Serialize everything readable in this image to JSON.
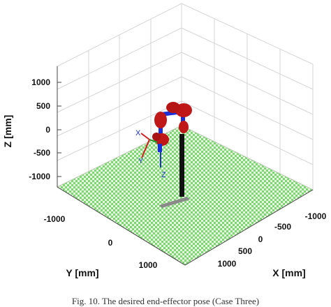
{
  "figure": {
    "caption": "Fig. 10. The desired end-effector pose (Case Three)",
    "axes": {
      "x_label": "X [mm]",
      "y_label": "Y [mm]",
      "z_label": "Z [mm]",
      "x_ticks": [
        "-1000",
        "-500",
        "0",
        "500",
        "1000"
      ],
      "y_ticks": [
        "-1000",
        "0",
        "1000"
      ],
      "z_ticks": [
        "1000",
        "500",
        "0",
        "-500",
        "-1000"
      ]
    },
    "frame_labels": [
      "X",
      "Y",
      "Z"
    ],
    "colors": {
      "floor_green": "#79d86e",
      "floor_light": "#e8f8e2",
      "robot_red": "#c01818",
      "robot_blue": "#1a2fd6",
      "column": "#111111",
      "base_plate": "#8a8a8a",
      "grid": "#d6d6d6",
      "frame_x": "#d41f1f",
      "frame_y": "#1f9a2a",
      "frame_z": "#1a33c8"
    }
  }
}
